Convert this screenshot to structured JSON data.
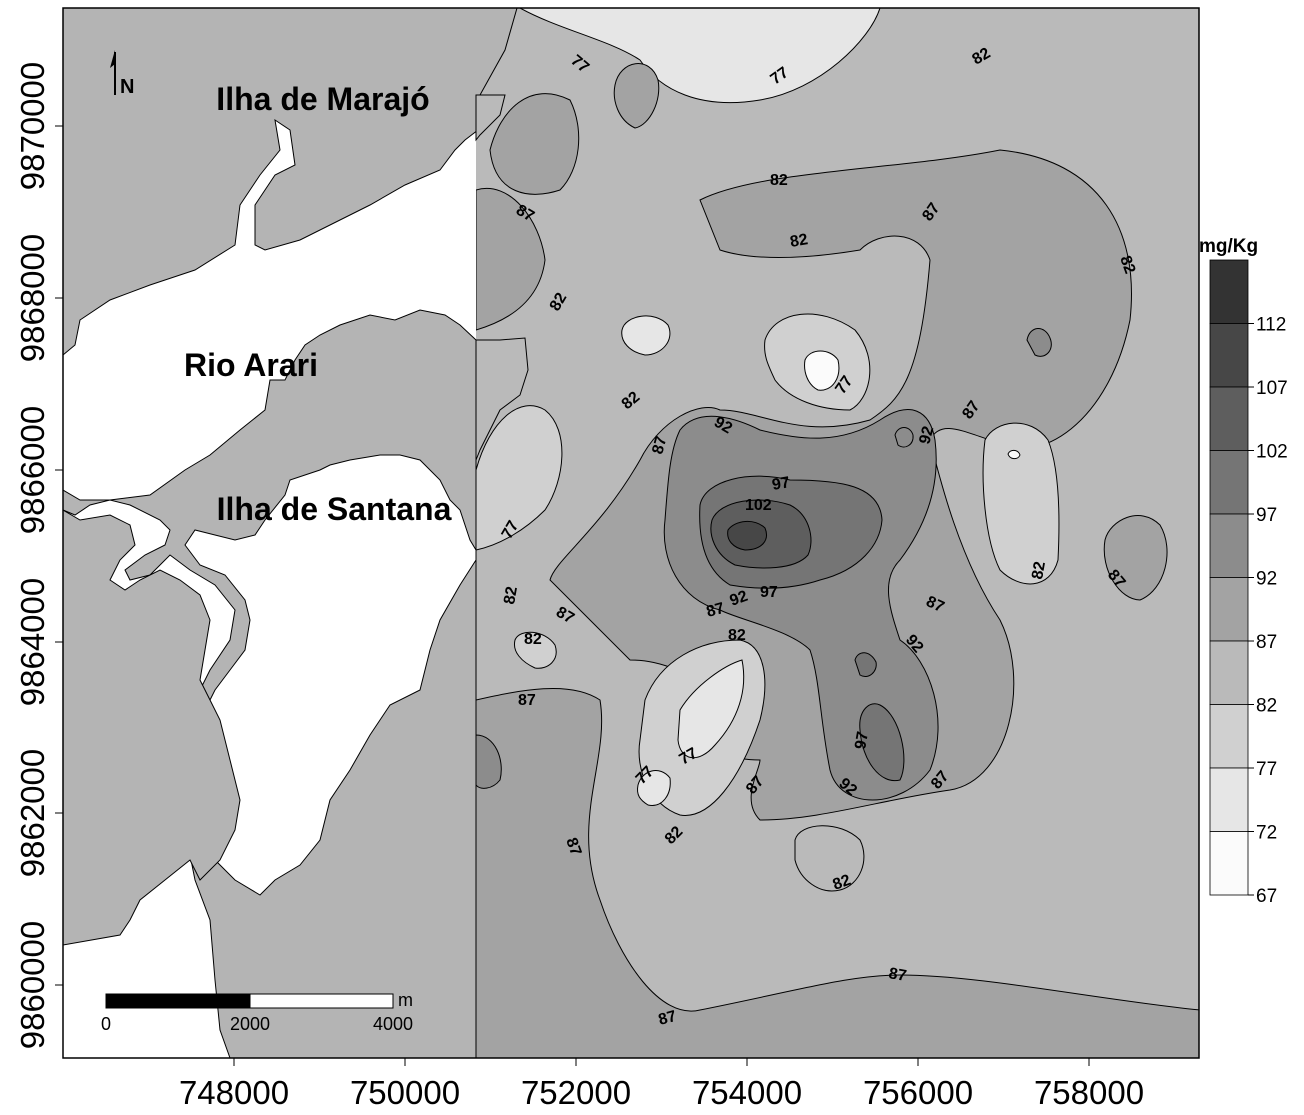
{
  "map": {
    "legend": {
      "title": "mg/Kg",
      "class_boundaries": [
        "112",
        "107",
        "102",
        "97",
        "92",
        "87",
        "82",
        "77",
        "72",
        "67"
      ],
      "colors": [
        "#333333",
        "#474747",
        "#5e5e5e",
        "#757575",
        "#8c8c8c",
        "#a3a3a3",
        "#bababa",
        "#d0d0d0",
        "#e6e6e6",
        "#fbfbfb"
      ]
    },
    "axes": {
      "y_ticks": [
        "9870000",
        "9868000",
        "9866000",
        "9864000",
        "9862000",
        "9860000"
      ],
      "x_ticks": [
        "748000",
        "750000",
        "752000",
        "754000",
        "756000",
        "758000"
      ]
    },
    "place_names": {
      "north_island": "Ilha de Marajó",
      "river": "Rio Arari",
      "south_island": "Ilha de Santana"
    },
    "north_arrow": {
      "label": "N"
    },
    "scale_bar": {
      "unit": "m",
      "labels": [
        "0",
        "2000",
        "4000"
      ]
    },
    "contour_labels": [
      "77",
      "77",
      "82",
      "82",
      "82",
      "87",
      "87",
      "82",
      "77",
      "82",
      "87",
      "92",
      "92",
      "87",
      "97",
      "102",
      "97",
      "92",
      "87",
      "87",
      "82",
      "87",
      "77",
      "82",
      "82",
      "82",
      "87",
      "92",
      "87",
      "82",
      "87",
      "77",
      "77",
      "82",
      "87",
      "97",
      "92",
      "87",
      "82",
      "87",
      "87"
    ]
  }
}
